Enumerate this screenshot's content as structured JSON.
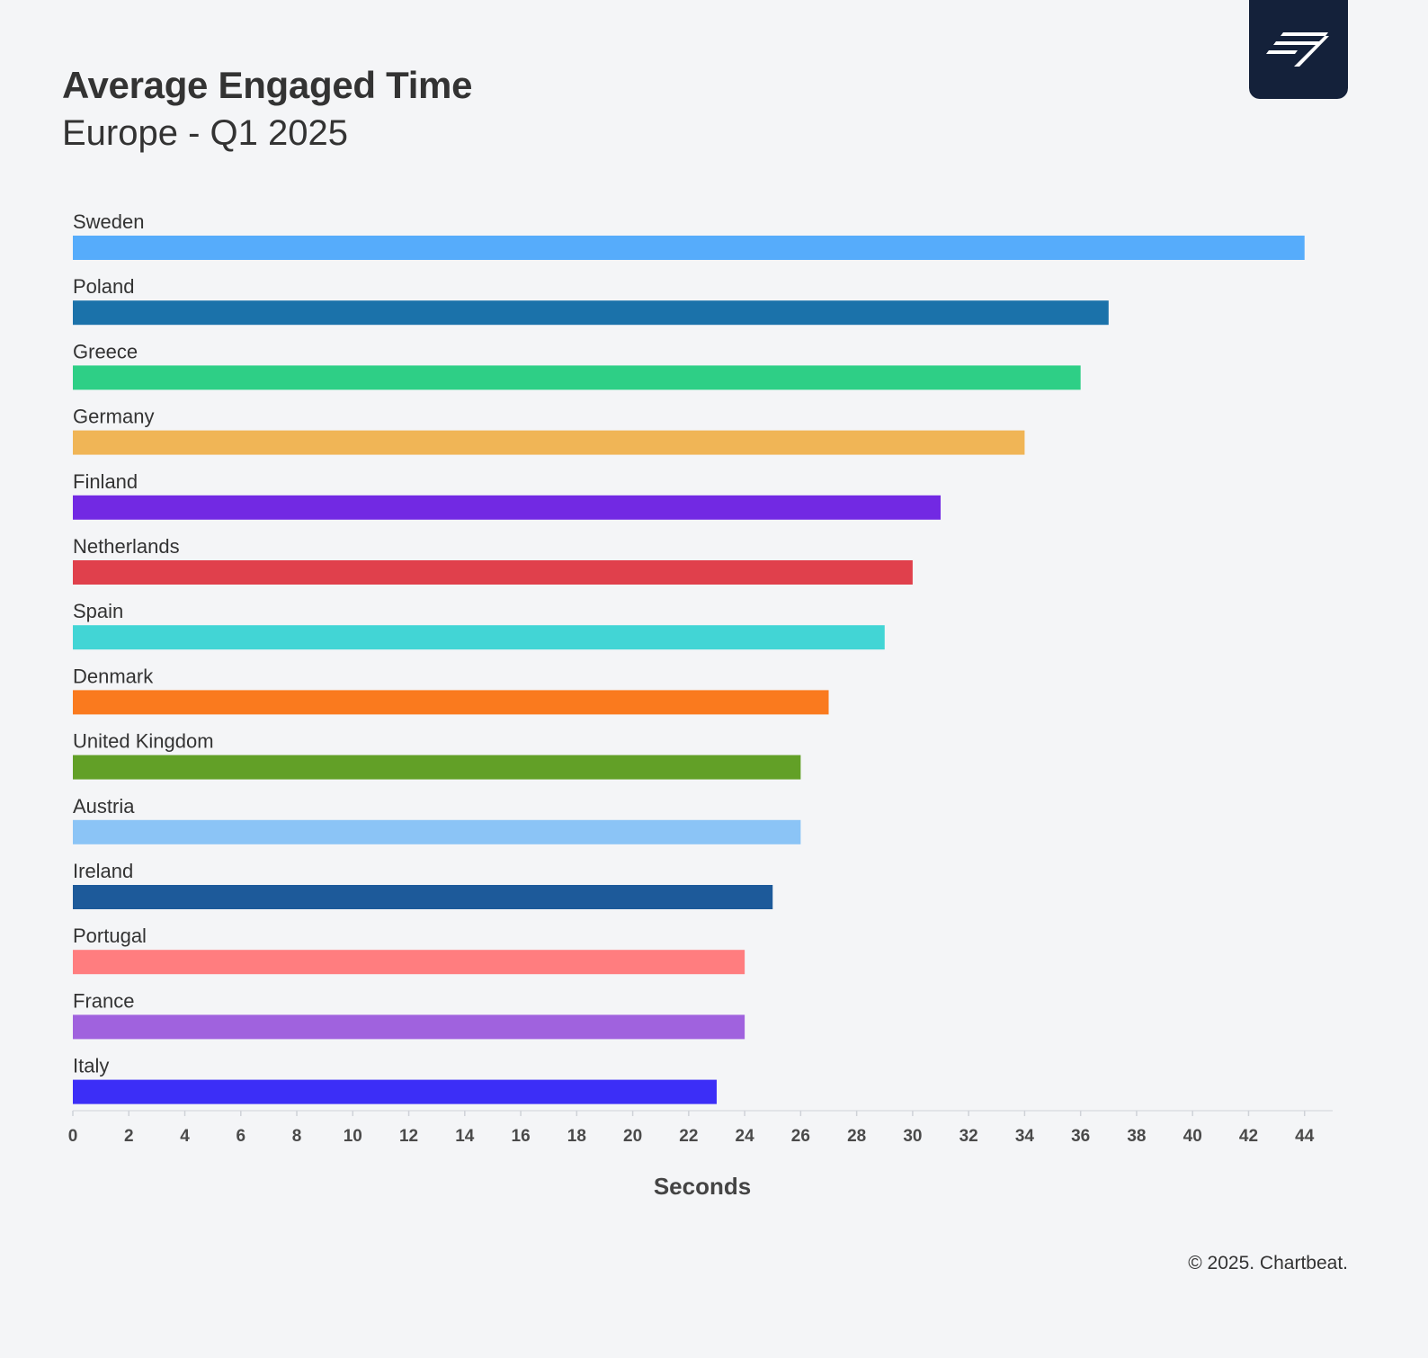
{
  "header": {
    "title": "Average Engaged Time",
    "subtitle": "Europe - Q1 2025"
  },
  "logo": {
    "icon": "chartbeat-logo-icon",
    "background": "#14213a"
  },
  "footer": {
    "copyright": "© 2025. Chartbeat."
  },
  "chart_data": {
    "type": "bar",
    "orientation": "horizontal",
    "title": "Average Engaged Time",
    "subtitle": "Europe - Q1 2025",
    "xlabel": "Seconds",
    "ylabel": "",
    "xlim": [
      0,
      45
    ],
    "xticks": [
      0,
      2,
      4,
      6,
      8,
      10,
      12,
      14,
      16,
      18,
      20,
      22,
      24,
      26,
      28,
      30,
      32,
      34,
      36,
      38,
      40,
      42,
      44
    ],
    "grid": false,
    "legend": "none",
    "categories": [
      "Sweden",
      "Poland",
      "Greece",
      "Germany",
      "Finland",
      "Netherlands",
      "Spain",
      "Denmark",
      "United Kingdom",
      "Austria",
      "Ireland",
      "Portugal",
      "France",
      "Italy"
    ],
    "values": [
      44,
      37,
      36,
      34,
      31,
      30,
      29,
      27,
      26,
      26,
      25,
      24,
      24,
      23
    ],
    "colors": [
      "#56acfb",
      "#1b72aa",
      "#2ecf86",
      "#f0b556",
      "#7229e3",
      "#e0404c",
      "#42d5d5",
      "#fa7a1e",
      "#62a027",
      "#8bc4f6",
      "#1d5a9a",
      "#ff7d7f",
      "#a062de",
      "#3c2ef7"
    ]
  }
}
